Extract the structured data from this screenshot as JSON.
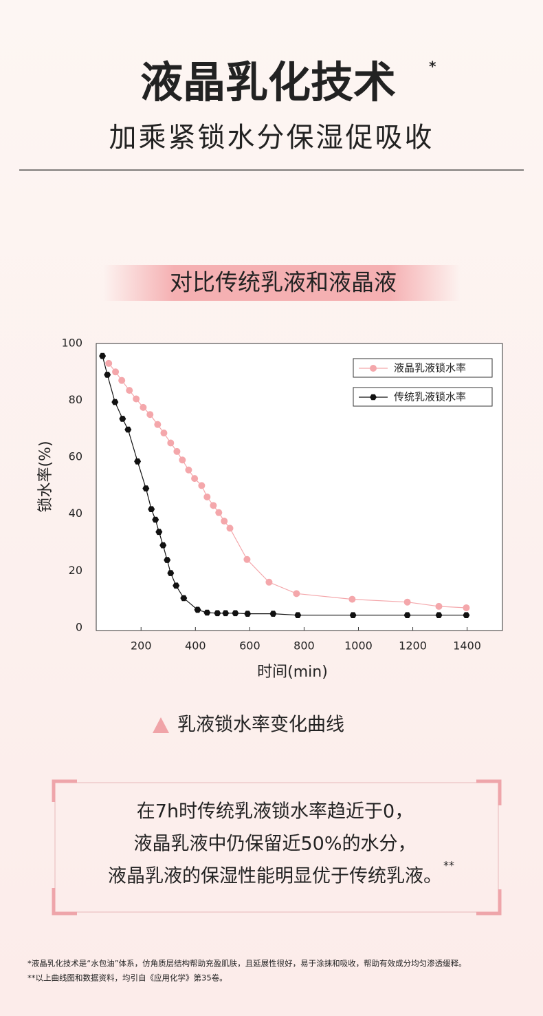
{
  "header": {
    "title": "液晶乳化技术",
    "title_mark": "*",
    "subtitle": "加乘紧锁水分保湿促吸收"
  },
  "section_title": "对比传统乳液和液晶液",
  "chart_data": {
    "type": "line",
    "xlabel": "时间(min)",
    "ylabel": "锁水率(%)",
    "xlim": [
      35,
      1530
    ],
    "ylim": [
      -1,
      100
    ],
    "xticks": [
      200,
      400,
      600,
      800,
      1000,
      1200,
      1400
    ],
    "yticks": [
      0,
      20,
      40,
      60,
      80,
      100
    ],
    "legend": "upper right",
    "series": [
      {
        "name": "液晶乳液锁水率",
        "color": "#f4a7ab",
        "marker": "circle",
        "x": [
          81,
          106,
          129,
          157,
          182,
          208,
          233,
          261,
          284,
          309,
          332,
          352,
          375,
          397,
          423,
          443,
          466,
          486,
          506,
          527,
          590,
          671,
          772,
          977,
          1180,
          1296,
          1397
        ],
        "values": [
          93,
          90,
          87,
          83.5,
          80.5,
          77.5,
          75,
          71.5,
          68.5,
          65,
          62,
          59,
          55.5,
          52.5,
          50,
          46,
          43,
          40.5,
          37.5,
          35,
          24,
          16,
          12,
          10,
          9,
          7.5,
          7
        ]
      },
      {
        "name": "传统乳液锁水率",
        "color": "#111111",
        "marker": "hexagon",
        "x": [
          58,
          76,
          104,
          132,
          152,
          187,
          218,
          238,
          253,
          266,
          281,
          296,
          309,
          329,
          357,
          408,
          443,
          481,
          511,
          547,
          592,
          686,
          777,
          980,
          1180,
          1296,
          1397
        ],
        "values": [
          95.6,
          89,
          79.4,
          73.5,
          69.7,
          58.5,
          49,
          41.7,
          38,
          33.7,
          29,
          23.8,
          19.2,
          14.8,
          10.4,
          6.3,
          5.3,
          5.1,
          5.1,
          5.1,
          4.9,
          4.9,
          4.4,
          4.4,
          4.4,
          4.4,
          4.4
        ]
      }
    ]
  },
  "caption": "乳液锁水率变化曲线",
  "callout": {
    "lines": [
      "在7h时传统乳液锁水率趋近于0，",
      "液晶乳液中仍保留近50%的水分，",
      "液晶乳液的保湿性能明显优于传统乳液。"
    ],
    "mark": "**"
  },
  "footnotes": [
    "*液晶乳化技术是“水包油”体系，仿角质层结构帮助充盈肌肤，且延展性很好，易于涂抹和吸收，帮助有效成分均匀渗透缓释。",
    "**以上曲线图和数据资料，均引自《应用化学》第35卷。"
  ]
}
